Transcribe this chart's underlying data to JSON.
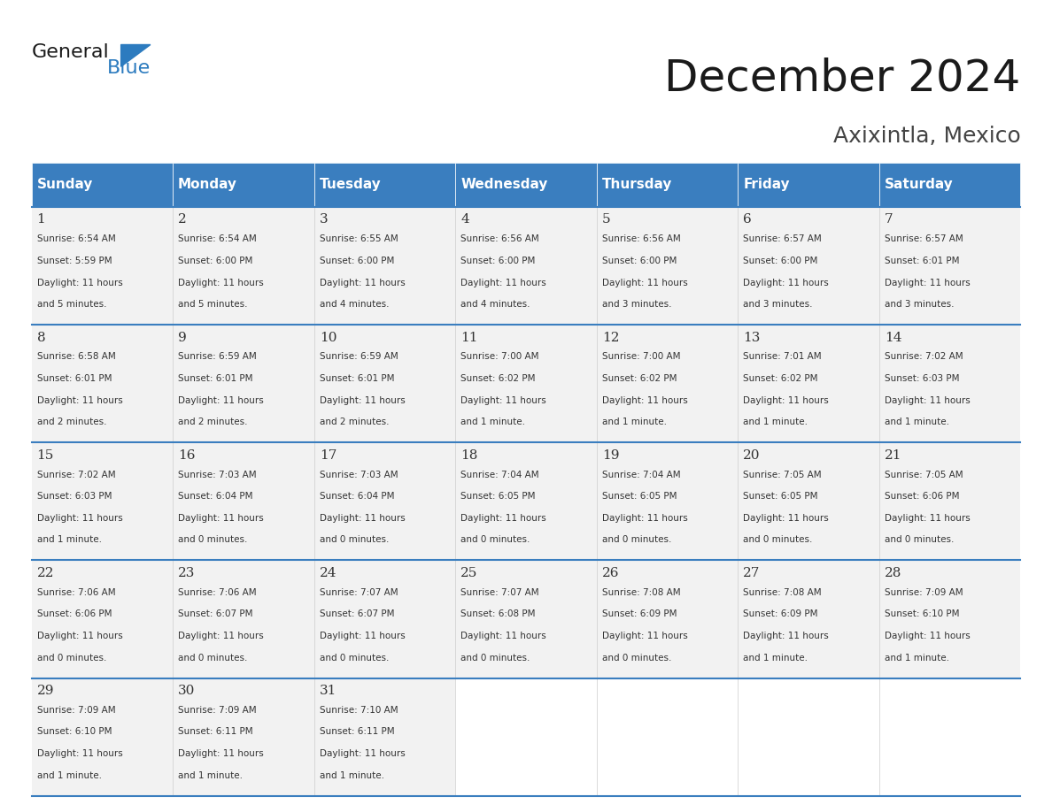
{
  "title": "December 2024",
  "subtitle": "Axixintla, Mexico",
  "header_bg": "#3a7ebf",
  "header_text_color": "#ffffff",
  "cell_bg_light": "#f2f2f2",
  "cell_bg_white": "#ffffff",
  "border_color": "#3a7ebf",
  "days_of_week": [
    "Sunday",
    "Monday",
    "Tuesday",
    "Wednesday",
    "Thursday",
    "Friday",
    "Saturday"
  ],
  "weeks": [
    [
      {
        "day": 1,
        "sunrise": "6:54 AM",
        "sunset": "5:59 PM",
        "daylight": "11 hours and 5 minutes."
      },
      {
        "day": 2,
        "sunrise": "6:54 AM",
        "sunset": "6:00 PM",
        "daylight": "11 hours and 5 minutes."
      },
      {
        "day": 3,
        "sunrise": "6:55 AM",
        "sunset": "6:00 PM",
        "daylight": "11 hours and 4 minutes."
      },
      {
        "day": 4,
        "sunrise": "6:56 AM",
        "sunset": "6:00 PM",
        "daylight": "11 hours and 4 minutes."
      },
      {
        "day": 5,
        "sunrise": "6:56 AM",
        "sunset": "6:00 PM",
        "daylight": "11 hours and 3 minutes."
      },
      {
        "day": 6,
        "sunrise": "6:57 AM",
        "sunset": "6:00 PM",
        "daylight": "11 hours and 3 minutes."
      },
      {
        "day": 7,
        "sunrise": "6:57 AM",
        "sunset": "6:01 PM",
        "daylight": "11 hours and 3 minutes."
      }
    ],
    [
      {
        "day": 8,
        "sunrise": "6:58 AM",
        "sunset": "6:01 PM",
        "daylight": "11 hours and 2 minutes."
      },
      {
        "day": 9,
        "sunrise": "6:59 AM",
        "sunset": "6:01 PM",
        "daylight": "11 hours and 2 minutes."
      },
      {
        "day": 10,
        "sunrise": "6:59 AM",
        "sunset": "6:01 PM",
        "daylight": "11 hours and 2 minutes."
      },
      {
        "day": 11,
        "sunrise": "7:00 AM",
        "sunset": "6:02 PM",
        "daylight": "11 hours and 1 minute."
      },
      {
        "day": 12,
        "sunrise": "7:00 AM",
        "sunset": "6:02 PM",
        "daylight": "11 hours and 1 minute."
      },
      {
        "day": 13,
        "sunrise": "7:01 AM",
        "sunset": "6:02 PM",
        "daylight": "11 hours and 1 minute."
      },
      {
        "day": 14,
        "sunrise": "7:02 AM",
        "sunset": "6:03 PM",
        "daylight": "11 hours and 1 minute."
      }
    ],
    [
      {
        "day": 15,
        "sunrise": "7:02 AM",
        "sunset": "6:03 PM",
        "daylight": "11 hours and 1 minute."
      },
      {
        "day": 16,
        "sunrise": "7:03 AM",
        "sunset": "6:04 PM",
        "daylight": "11 hours and 0 minutes."
      },
      {
        "day": 17,
        "sunrise": "7:03 AM",
        "sunset": "6:04 PM",
        "daylight": "11 hours and 0 minutes."
      },
      {
        "day": 18,
        "sunrise": "7:04 AM",
        "sunset": "6:05 PM",
        "daylight": "11 hours and 0 minutes."
      },
      {
        "day": 19,
        "sunrise": "7:04 AM",
        "sunset": "6:05 PM",
        "daylight": "11 hours and 0 minutes."
      },
      {
        "day": 20,
        "sunrise": "7:05 AM",
        "sunset": "6:05 PM",
        "daylight": "11 hours and 0 minutes."
      },
      {
        "day": 21,
        "sunrise": "7:05 AM",
        "sunset": "6:06 PM",
        "daylight": "11 hours and 0 minutes."
      }
    ],
    [
      {
        "day": 22,
        "sunrise": "7:06 AM",
        "sunset": "6:06 PM",
        "daylight": "11 hours and 0 minutes."
      },
      {
        "day": 23,
        "sunrise": "7:06 AM",
        "sunset": "6:07 PM",
        "daylight": "11 hours and 0 minutes."
      },
      {
        "day": 24,
        "sunrise": "7:07 AM",
        "sunset": "6:07 PM",
        "daylight": "11 hours and 0 minutes."
      },
      {
        "day": 25,
        "sunrise": "7:07 AM",
        "sunset": "6:08 PM",
        "daylight": "11 hours and 0 minutes."
      },
      {
        "day": 26,
        "sunrise": "7:08 AM",
        "sunset": "6:09 PM",
        "daylight": "11 hours and 0 minutes."
      },
      {
        "day": 27,
        "sunrise": "7:08 AM",
        "sunset": "6:09 PM",
        "daylight": "11 hours and 1 minute."
      },
      {
        "day": 28,
        "sunrise": "7:09 AM",
        "sunset": "6:10 PM",
        "daylight": "11 hours and 1 minute."
      }
    ],
    [
      {
        "day": 29,
        "sunrise": "7:09 AM",
        "sunset": "6:10 PM",
        "daylight": "11 hours and 1 minute."
      },
      {
        "day": 30,
        "sunrise": "7:09 AM",
        "sunset": "6:11 PM",
        "daylight": "11 hours and 1 minute."
      },
      {
        "day": 31,
        "sunrise": "7:10 AM",
        "sunset": "6:11 PM",
        "daylight": "11 hours and 1 minute."
      },
      null,
      null,
      null,
      null
    ]
  ],
  "logo_text_general": "General",
  "logo_text_blue": "Blue",
  "logo_color_general": "#1a1a1a",
  "logo_color_blue": "#2c7bbf",
  "logo_triangle_color": "#2c7bbf"
}
